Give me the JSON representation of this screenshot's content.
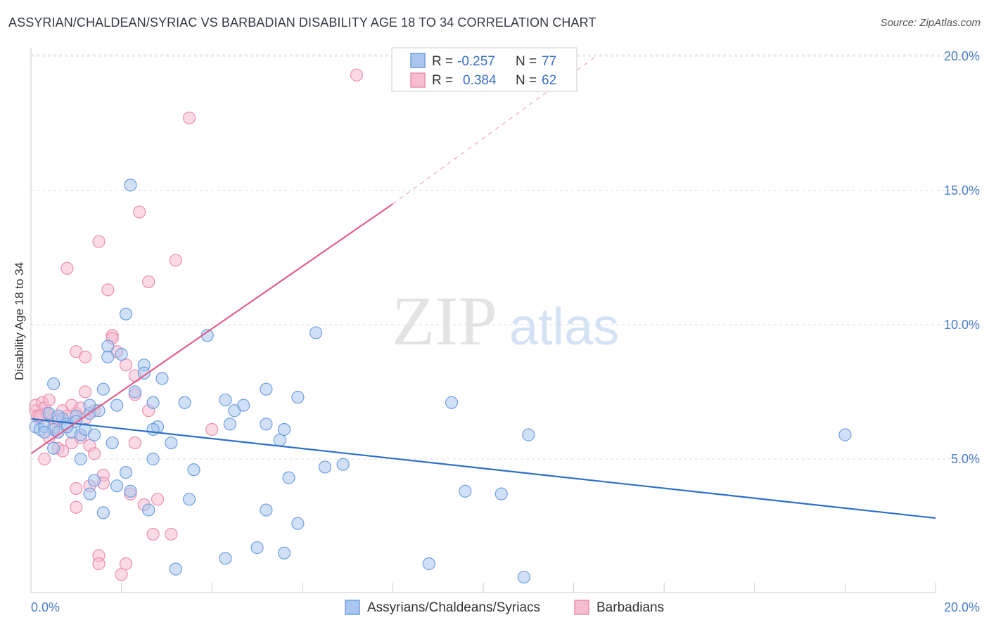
{
  "title": "ASSYRIAN/CHALDEAN/SYRIAC VS BARBADIAN DISABILITY AGE 18 TO 34 CORRELATION CHART",
  "source": "Source: ZipAtlas.com",
  "watermark": {
    "zip": "ZIP",
    "atlas": "atlas"
  },
  "legend_box": [
    {
      "r_label": "R =",
      "r_value": "-0.257",
      "n_label": "N =",
      "n_value": "77"
    },
    {
      "r_label": "R =",
      "r_value": "0.384",
      "n_label": "N =",
      "n_value": "62"
    }
  ],
  "colors": {
    "blue_fill": "#a9c6ee",
    "blue_stroke": "#6f9fde",
    "blue_line": "#2c6fcb",
    "pink_fill": "#f6bcd0",
    "pink_stroke": "#ea8fb0",
    "pink_line": "#e0608e",
    "grid": "#dddddd",
    "tick_label": "#4a7cc9"
  },
  "chart_data": {
    "type": "scatter",
    "title": "ASSYRIAN/CHALDEAN/SYRIAC VS BARBADIAN DISABILITY AGE 18 TO 34 CORRELATION CHART",
    "ylabel": "Disability Age 18 to 34",
    "xlabel": "",
    "xlim": [
      0,
      20
    ],
    "ylim": [
      0.5,
      20.5
    ],
    "x_tick_labels": [
      "0.0%",
      "20.0%"
    ],
    "y_ticks": [
      5,
      10,
      15,
      20
    ],
    "y_tick_labels": [
      "5.0%",
      "10.0%",
      "15.0%",
      "20.0%"
    ],
    "grid": true,
    "legend": "top-center",
    "series": [
      {
        "name": "Assyrians/Chaldeans/Syriacs",
        "r": -0.257,
        "n": 77,
        "trend": {
          "x": [
            0,
            20
          ],
          "y": [
            6.5,
            2.8
          ]
        },
        "points": [
          [
            0.1,
            6.2
          ],
          [
            0.2,
            6.1
          ],
          [
            0.3,
            6.2
          ],
          [
            0.4,
            6.7
          ],
          [
            0.5,
            6.1
          ],
          [
            0.6,
            6.0
          ],
          [
            0.7,
            6.5
          ],
          [
            0.8,
            6.3
          ],
          [
            0.9,
            6.0
          ],
          [
            1.0,
            6.6
          ],
          [
            1.1,
            5.9
          ],
          [
            1.2,
            6.1
          ],
          [
            1.3,
            6.7
          ],
          [
            1.3,
            7.0
          ],
          [
            1.4,
            5.9
          ],
          [
            1.5,
            6.8
          ],
          [
            0.5,
            5.4
          ],
          [
            0.5,
            7.8
          ],
          [
            1.1,
            5.0
          ],
          [
            1.3,
            3.7
          ],
          [
            1.4,
            4.2
          ],
          [
            1.6,
            7.6
          ],
          [
            1.6,
            3.0
          ],
          [
            1.7,
            9.2
          ],
          [
            1.7,
            8.8
          ],
          [
            1.8,
            5.6
          ],
          [
            1.9,
            4.0
          ],
          [
            1.9,
            7.0
          ],
          [
            2.0,
            8.9
          ],
          [
            2.1,
            10.4
          ],
          [
            2.1,
            4.5
          ],
          [
            2.2,
            15.2
          ],
          [
            2.2,
            3.8
          ],
          [
            2.3,
            7.5
          ],
          [
            2.5,
            8.5
          ],
          [
            2.5,
            8.2
          ],
          [
            2.6,
            3.1
          ],
          [
            2.7,
            7.1
          ],
          [
            2.7,
            5.0
          ],
          [
            2.8,
            6.2
          ],
          [
            2.9,
            8.0
          ],
          [
            3.1,
            5.6
          ],
          [
            3.2,
            0.9
          ],
          [
            3.4,
            7.1
          ],
          [
            3.5,
            3.5
          ],
          [
            3.6,
            4.6
          ],
          [
            3.9,
            9.6
          ],
          [
            4.3,
            1.3
          ],
          [
            4.3,
            7.2
          ],
          [
            4.4,
            6.3
          ],
          [
            4.5,
            6.8
          ],
          [
            4.7,
            7.0
          ],
          [
            5.0,
            1.7
          ],
          [
            5.2,
            7.6
          ],
          [
            5.2,
            6.3
          ],
          [
            5.2,
            3.1
          ],
          [
            5.5,
            5.7
          ],
          [
            5.6,
            6.1
          ],
          [
            5.6,
            1.5
          ],
          [
            5.7,
            4.3
          ],
          [
            5.9,
            7.3
          ],
          [
            5.9,
            2.6
          ],
          [
            6.3,
            9.7
          ],
          [
            6.5,
            4.7
          ],
          [
            6.9,
            4.8
          ],
          [
            8.8,
            1.1
          ],
          [
            9.3,
            7.1
          ],
          [
            9.6,
            3.8
          ],
          [
            10.4,
            3.7
          ],
          [
            10.9,
            0.6
          ],
          [
            11.0,
            5.9
          ],
          [
            18.0,
            5.9
          ],
          [
            0.6,
            6.6
          ],
          [
            1.0,
            6.4
          ],
          [
            0.3,
            6.0
          ],
          [
            2.7,
            6.1
          ],
          [
            0.8,
            6.2
          ]
        ]
      },
      {
        "name": "Barbadians",
        "r": 0.384,
        "n": 62,
        "trend": {
          "x": [
            0,
            8.0
          ],
          "y": [
            5.2,
            14.5
          ]
        },
        "trend_dashed": {
          "x": [
            8.0,
            12.5
          ],
          "y": [
            14.5,
            20.0
          ]
        },
        "points": [
          [
            0.1,
            6.8
          ],
          [
            0.1,
            7.0
          ],
          [
            0.15,
            6.6
          ],
          [
            0.2,
            6.5
          ],
          [
            0.25,
            7.1
          ],
          [
            0.3,
            6.9
          ],
          [
            0.35,
            6.7
          ],
          [
            0.4,
            7.2
          ],
          [
            0.5,
            6.5
          ],
          [
            0.6,
            6.4
          ],
          [
            0.7,
            6.8
          ],
          [
            0.8,
            6.6
          ],
          [
            0.9,
            7.0
          ],
          [
            1.0,
            6.7
          ],
          [
            1.1,
            6.9
          ],
          [
            1.2,
            6.5
          ],
          [
            0.3,
            5.0
          ],
          [
            0.4,
            5.8
          ],
          [
            0.6,
            6.0
          ],
          [
            0.6,
            5.4
          ],
          [
            0.7,
            5.3
          ],
          [
            0.8,
            12.1
          ],
          [
            0.9,
            5.6
          ],
          [
            1.0,
            9.0
          ],
          [
            1.0,
            3.9
          ],
          [
            1.0,
            3.2
          ],
          [
            1.1,
            5.8
          ],
          [
            1.2,
            8.8
          ],
          [
            1.2,
            7.5
          ],
          [
            1.3,
            4.0
          ],
          [
            1.3,
            5.5
          ],
          [
            1.4,
            6.8
          ],
          [
            1.4,
            5.2
          ],
          [
            1.5,
            1.4
          ],
          [
            1.5,
            1.1
          ],
          [
            1.5,
            13.1
          ],
          [
            1.6,
            4.4
          ],
          [
            1.6,
            4.1
          ],
          [
            1.7,
            11.3
          ],
          [
            1.8,
            9.6
          ],
          [
            1.8,
            9.5
          ],
          [
            1.9,
            9.0
          ],
          [
            2.0,
            0.7
          ],
          [
            2.1,
            8.5
          ],
          [
            2.1,
            1.1
          ],
          [
            2.2,
            3.7
          ],
          [
            2.3,
            5.6
          ],
          [
            2.3,
            8.1
          ],
          [
            2.3,
            7.4
          ],
          [
            2.4,
            14.2
          ],
          [
            2.5,
            3.3
          ],
          [
            2.6,
            6.8
          ],
          [
            2.6,
            11.6
          ],
          [
            2.7,
            2.2
          ],
          [
            2.8,
            3.5
          ],
          [
            3.1,
            2.2
          ],
          [
            3.2,
            12.4
          ],
          [
            3.5,
            17.7
          ],
          [
            4.0,
            6.1
          ],
          [
            7.2,
            19.3
          ],
          [
            0.2,
            6.6
          ],
          [
            0.5,
            6.2
          ]
        ]
      }
    ]
  }
}
